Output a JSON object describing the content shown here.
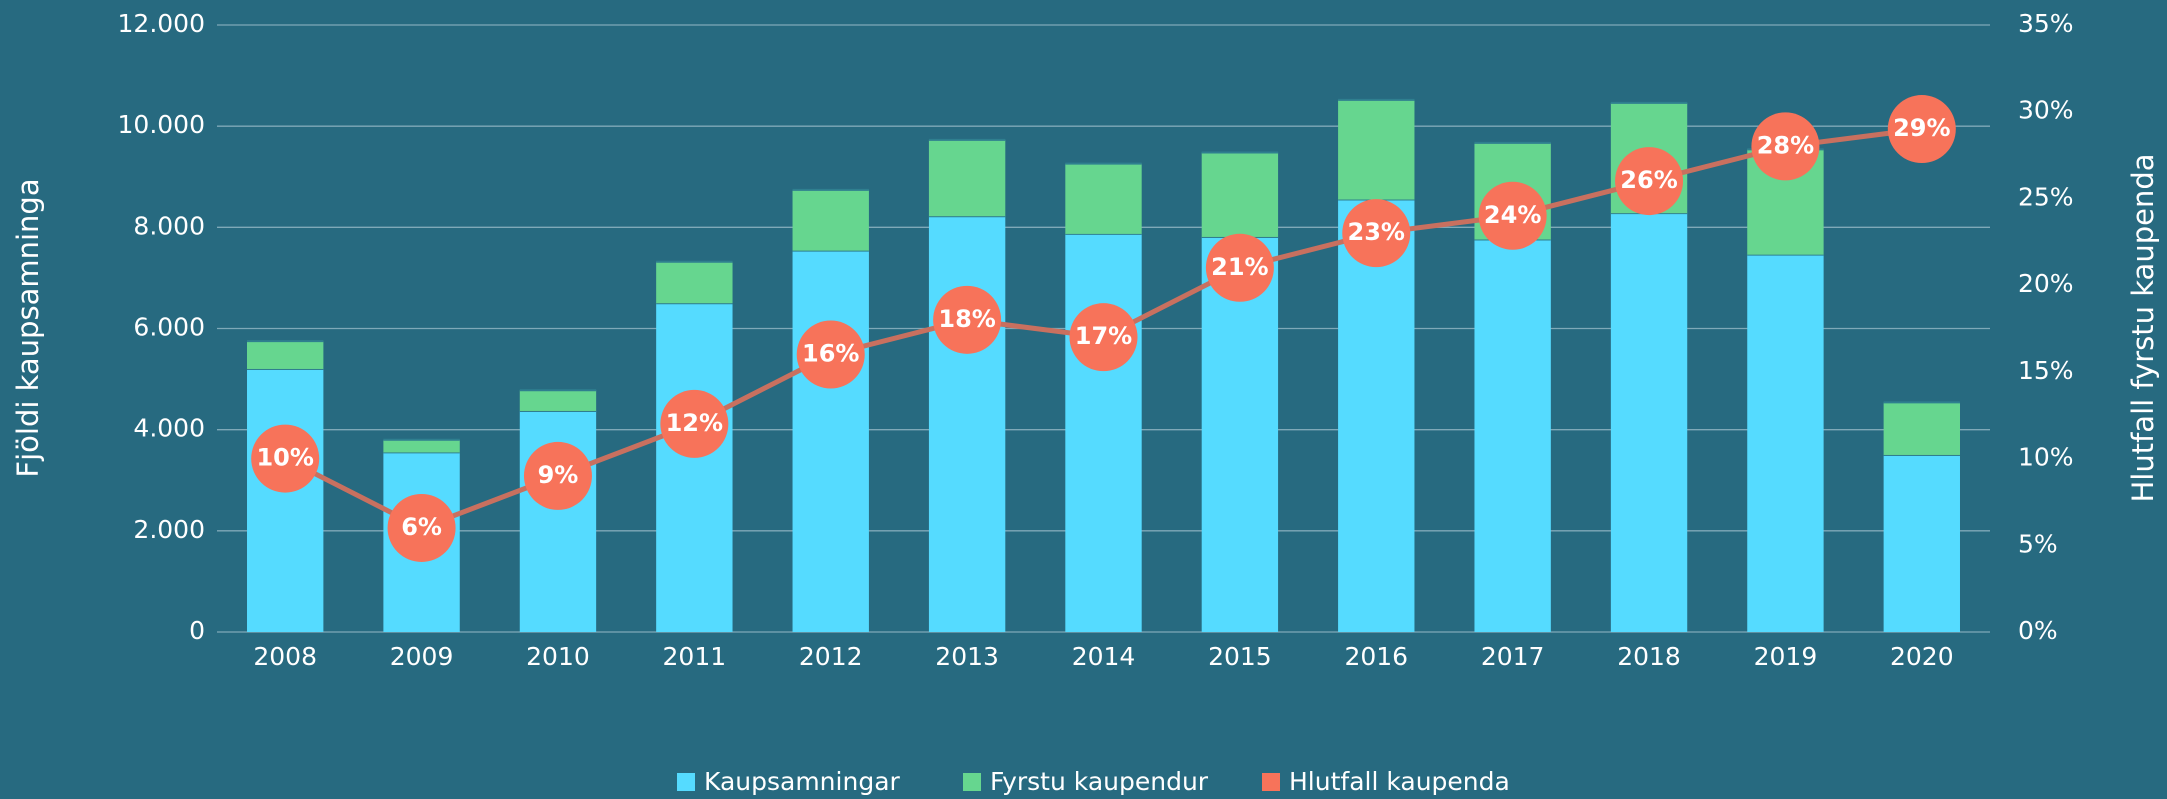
{
  "chart_data": {
    "type": "bar+line",
    "categories": [
      "2008",
      "2009",
      "2010",
      "2011",
      "2012",
      "2013",
      "2014",
      "2015",
      "2016",
      "2017",
      "2018",
      "2019",
      "2020"
    ],
    "y_label": "Fjöldi kaupsamninga",
    "y2_label": "Hlutfall fyrstu kaupenda",
    "series": [
      {
        "name": "Kaupsamningar",
        "color": "#55dbff",
        "values": [
          5200,
          3550,
          4370,
          6500,
          7540,
          8220,
          7870,
          7810,
          8550,
          7760,
          8280,
          7460,
          3500
        ]
      },
      {
        "name": "Fyrstu kaupendur",
        "color": "#66d68f",
        "values": [
          550,
          250,
          410,
          820,
          1200,
          1510,
          1390,
          1670,
          1970,
          1910,
          2180,
          2080,
          1040
        ]
      },
      {
        "name": "Hlutfall kaupenda",
        "color": "#f7735a",
        "line_color": "#c8705f",
        "axis": "y2",
        "values": [
          10,
          6,
          9,
          12,
          16,
          18,
          17,
          21,
          23,
          24,
          26,
          28,
          29
        ],
        "value_labels": [
          "10%",
          "6%",
          "9%",
          "12%",
          "16%",
          "18%",
          "17%",
          "21%",
          "23%",
          "24%",
          "26%",
          "28%",
          "29%"
        ]
      }
    ],
    "ylim": [
      0,
      12000
    ],
    "yticks": [
      0,
      {
        "value": 2000,
        "label": "2.000"
      },
      {
        "value": 4000,
        "label": "4.000"
      },
      {
        "value": 6000,
        "label": "6.000"
      },
      {
        "value": 8000,
        "label": "8.000"
      },
      {
        "value": 10000,
        "label": "10.000"
      },
      {
        "value": 12000,
        "label": "12.000"
      }
    ],
    "y2lim": [
      0,
      35
    ],
    "y2ticks": [
      {
        "value": 0,
        "label": "0%"
      },
      {
        "value": 5,
        "label": "5%"
      },
      {
        "value": 10,
        "label": "10%"
      },
      {
        "value": 15,
        "label": "15%"
      },
      {
        "value": 20,
        "label": "20%"
      },
      {
        "value": 25,
        "label": "25%"
      },
      {
        "value": 30,
        "label": "30%"
      },
      {
        "value": 35,
        "label": "35%"
      }
    ],
    "grid": true,
    "legend": "bottom"
  }
}
